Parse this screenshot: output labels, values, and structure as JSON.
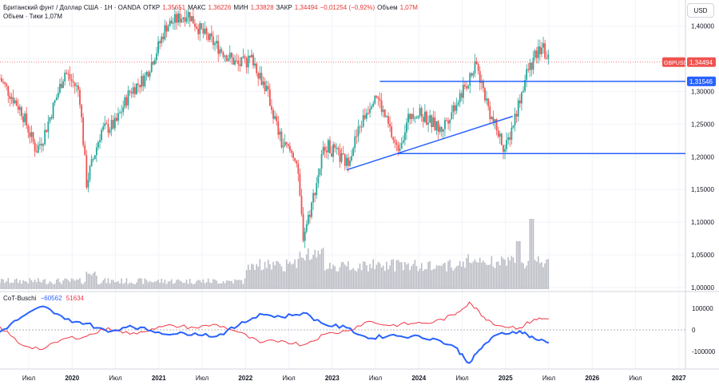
{
  "header": {
    "symbol": "Британский фунт / Доллар США · 1Н · OANDA",
    "open_label": "ОТКР",
    "open": "1,35651",
    "high_label": "МАКС",
    "high": "1,36226",
    "low_label": "МИН",
    "low": "1,33828",
    "close_label": "ЗАКР",
    "close": "1,34494",
    "change": "−0,01254 (−0,92%)",
    "volume_label": "Объем",
    "volume": "1,07M",
    "volume_line": "Объем · Тики  1,07M"
  },
  "currency": "USD",
  "indicator": {
    "name": "CoT-Buschi",
    "value1": "−60562",
    "value2": "51634",
    "axis_labels": [
      "100000",
      "0",
      "-100000"
    ]
  },
  "price_axis": [
    "1,40000",
    "1,35000",
    "1,30000",
    "1,25000",
    "1,20000",
    "1,15000",
    "1,10000",
    "1,05000",
    "1,00000"
  ],
  "time_axis": [
    "Июл",
    "2020",
    "Июл",
    "2021",
    "Июл",
    "2022",
    "Июл",
    "2023",
    "Июл",
    "2024",
    "Июл",
    "2025",
    "Июл",
    "2026",
    "Июл",
    "2027"
  ],
  "last_price": {
    "symbol": "GBPUSD",
    "value": "1,34494"
  },
  "level_label": "1,31546",
  "colors": {
    "up": "#26a69a",
    "down": "#ef5350",
    "line": "#2962ff",
    "cot_blue": "#2962ff",
    "cot_red": "#f23645",
    "volume": "#b2b5be"
  },
  "chart_data": {
    "type": "candlestick",
    "ylim": [
      0.995,
      1.44
    ],
    "horizontal_lines": [
      1.31546,
      1.205
    ],
    "trendline": {
      "from": [
        "2023-03",
        1.18
      ],
      "to": [
        "2025-02",
        1.262
      ]
    },
    "price_path": [
      [
        "2019-03",
        1.32
      ],
      [
        "2019-06",
        1.27
      ],
      [
        "2019-08",
        1.21
      ],
      [
        "2019-09",
        1.23
      ],
      [
        "2019-12",
        1.33
      ],
      [
        "2020-02",
        1.3
      ],
      [
        "2020-03",
        1.16
      ],
      [
        "2020-05",
        1.24
      ],
      [
        "2020-07",
        1.25
      ],
      [
        "2020-09",
        1.3
      ],
      [
        "2020-11",
        1.32
      ],
      [
        "2021-01",
        1.37
      ],
      [
        "2021-02",
        1.4
      ],
      [
        "2021-05",
        1.42
      ],
      [
        "2021-07",
        1.39
      ],
      [
        "2021-09",
        1.37
      ],
      [
        "2021-12",
        1.34
      ],
      [
        "2022-02",
        1.35
      ],
      [
        "2022-04",
        1.3
      ],
      [
        "2022-06",
        1.22
      ],
      [
        "2022-08",
        1.2
      ],
      [
        "2022-09",
        1.08
      ],
      [
        "2022-10",
        1.12
      ],
      [
        "2022-12",
        1.22
      ],
      [
        "2023-02",
        1.2
      ],
      [
        "2023-03",
        1.19
      ],
      [
        "2023-05",
        1.25
      ],
      [
        "2023-07",
        1.3
      ],
      [
        "2023-08",
        1.27
      ],
      [
        "2023-10",
        1.21
      ],
      [
        "2023-12",
        1.27
      ],
      [
        "2024-02",
        1.26
      ],
      [
        "2024-04",
        1.24
      ],
      [
        "2024-06",
        1.28
      ],
      [
        "2024-09",
        1.34
      ],
      [
        "2024-11",
        1.26
      ],
      [
        "2025-01",
        1.21
      ],
      [
        "2025-03",
        1.29
      ],
      [
        "2025-04",
        1.33
      ],
      [
        "2025-06",
        1.37
      ],
      [
        "2025-07",
        1.345
      ]
    ],
    "cot_red": [
      [
        "2019-03",
        15000
      ],
      [
        "2019-06",
        -70000
      ],
      [
        "2019-09",
        -90000
      ],
      [
        "2019-12",
        -40000
      ],
      [
        "2020-03",
        -30000
      ],
      [
        "2020-06",
        10000
      ],
      [
        "2020-09",
        -20000
      ],
      [
        "2020-12",
        5000
      ],
      [
        "2021-03",
        20000
      ],
      [
        "2021-06",
        10000
      ],
      [
        "2021-09",
        25000
      ],
      [
        "2021-12",
        -10000
      ],
      [
        "2022-03",
        -60000
      ],
      [
        "2022-06",
        -50000
      ],
      [
        "2022-09",
        -70000
      ],
      [
        "2022-12",
        -20000
      ],
      [
        "2023-03",
        -5000
      ],
      [
        "2023-06",
        40000
      ],
      [
        "2023-09",
        20000
      ],
      [
        "2023-12",
        30000
      ],
      [
        "2024-03",
        35000
      ],
      [
        "2024-06",
        70000
      ],
      [
        "2024-08",
        130000
      ],
      [
        "2024-10",
        60000
      ],
      [
        "2024-12",
        20000
      ],
      [
        "2025-03",
        10000
      ],
      [
        "2025-05",
        50000
      ],
      [
        "2025-07",
        52000
      ]
    ],
    "cot_blue": [
      [
        "2019-03",
        -10000
      ],
      [
        "2019-06",
        60000
      ],
      [
        "2019-09",
        110000
      ],
      [
        "2019-12",
        50000
      ],
      [
        "2020-03",
        30000
      ],
      [
        "2020-06",
        -10000
      ],
      [
        "2020-09",
        20000
      ],
      [
        "2020-12",
        -5000
      ],
      [
        "2021-03",
        -20000
      ],
      [
        "2021-06",
        -15000
      ],
      [
        "2021-09",
        -30000
      ],
      [
        "2021-12",
        20000
      ],
      [
        "2022-03",
        75000
      ],
      [
        "2022-06",
        60000
      ],
      [
        "2022-09",
        80000
      ],
      [
        "2022-12",
        25000
      ],
      [
        "2023-03",
        10000
      ],
      [
        "2023-06",
        -40000
      ],
      [
        "2023-09",
        -25000
      ],
      [
        "2023-12",
        -30000
      ],
      [
        "2024-03",
        -40000
      ],
      [
        "2024-06",
        -80000
      ],
      [
        "2024-08",
        -155000
      ],
      [
        "2024-10",
        -70000
      ],
      [
        "2024-12",
        -20000
      ],
      [
        "2025-03",
        -5000
      ],
      [
        "2025-05",
        -40000
      ],
      [
        "2025-07",
        -60562
      ]
    ]
  }
}
